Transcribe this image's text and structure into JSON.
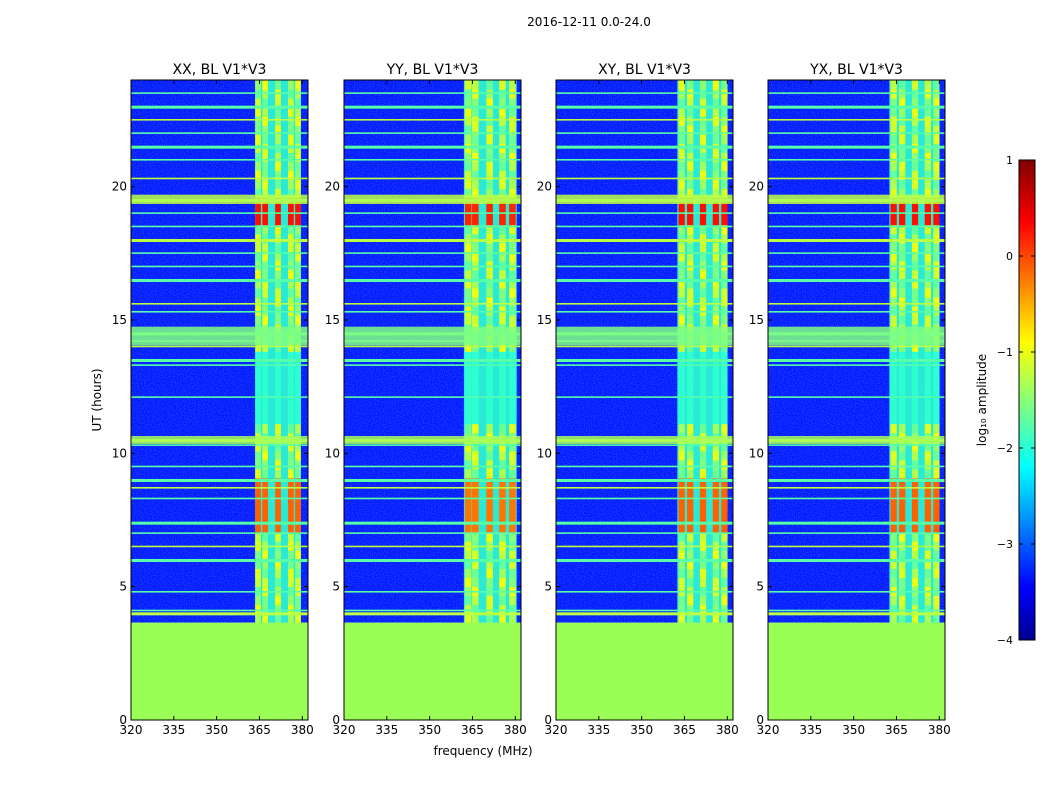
{
  "chart_data": {
    "type": "heatmap",
    "suptitle": "2016-12-11 0.0-24.0",
    "ylabel": "UT (hours)",
    "xlabel": "frequency (MHz)",
    "xlim": [
      320,
      382
    ],
    "ylim": [
      0,
      24
    ],
    "xticks": [
      320,
      335,
      350,
      365,
      380
    ],
    "yticks": [
      0,
      5,
      10,
      15,
      20
    ],
    "no_data_below_ut": 3.65,
    "colorbar": {
      "label": "log₁₀ amplitude",
      "min": -4,
      "max": 1,
      "ticks": [
        1,
        0,
        -1,
        -2,
        -3,
        -4
      ],
      "tick_labels": [
        "1",
        "0",
        "−1",
        "−2",
        "−3",
        "−4"
      ],
      "colormap": "jet"
    },
    "panels": [
      {
        "title": "XX, BL V1*V3",
        "rfi_band_mhz": [
          363.5,
          379.5
        ],
        "rfi_columns_mhz": [
          364.5,
          367,
          371.5,
          376,
          378.5
        ],
        "peak_log_amp": 0.3
      },
      {
        "title": "YY, BL V1*V3",
        "rfi_band_mhz": [
          362,
          380.5
        ],
        "rfi_columns_mhz": [
          363.5,
          366,
          371,
          375.5,
          379
        ],
        "peak_log_amp": 0.2
      },
      {
        "title": "XY, BL V1*V3",
        "rfi_band_mhz": [
          362.5,
          380
        ],
        "rfi_columns_mhz": [
          364,
          367,
          371.5,
          376,
          379
        ],
        "peak_log_amp": 0.3
      },
      {
        "title": "YX, BL V1*V3",
        "rfi_band_mhz": [
          362.5,
          380
        ],
        "rfi_columns_mhz": [
          364,
          367,
          371.5,
          376,
          379
        ],
        "peak_log_amp": 0.3
      }
    ],
    "horizontal_rfi_ut": [
      4.0,
      4.1,
      4.8,
      6.0,
      6.5,
      7.0,
      7.4,
      8.3,
      8.7,
      9.0,
      9.5,
      10.3,
      10.5,
      12.1,
      13.3,
      13.5,
      14.0,
      14.2,
      14.5,
      15.3,
      15.6,
      16.5,
      17.0,
      17.5,
      18.0,
      18.5,
      19.0,
      19.5,
      20.3,
      21.0,
      21.5,
      22.0,
      22.5,
      23.0,
      23.5
    ]
  }
}
